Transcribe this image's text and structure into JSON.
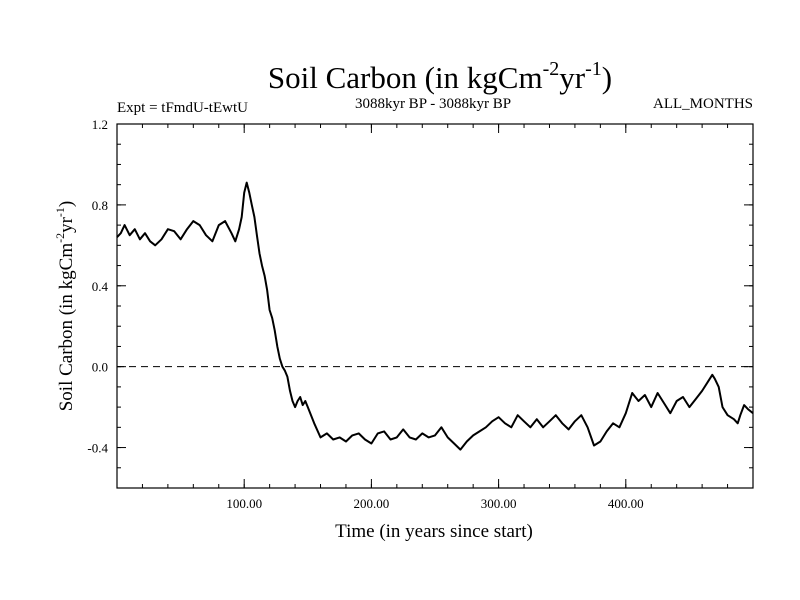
{
  "chart_data": {
    "type": "line",
    "title": {
      "main": "Soil Carbon (in kgCm",
      "sup1": "-2",
      "mid": "yr",
      "sup2": "-1",
      "end": ")"
    },
    "subtitle_left": "Expt = tFmdU-tEwtU",
    "subtitle_center": "3088kyr BP - 3088kyr BP",
    "subtitle_right": "ALL_MONTHS",
    "xlabel": "Time (in years since start)",
    "ylabel": {
      "main": "Soil Carbon (in kgCm",
      "sup1": "-2",
      "mid": "yr",
      "sup2": "-1",
      "end": ")"
    },
    "xlim": [
      0,
      500
    ],
    "ylim": [
      -0.6,
      1.2
    ],
    "x_ticks": [
      100,
      200,
      300,
      400
    ],
    "x_tick_labels": [
      "100.00",
      "200.00",
      "300.00",
      "400.00"
    ],
    "x_minor_step": 20,
    "y_ticks": [
      -0.4,
      0.0,
      0.4,
      0.8,
      1.2
    ],
    "y_tick_labels": [
      "-0.4",
      "0.0",
      "0.4",
      "0.8",
      "1.2"
    ],
    "y_minor_step": 0.1,
    "reference_line": {
      "y": 0.0,
      "style": "dashed"
    },
    "series": [
      {
        "name": "Soil Carbon",
        "color": "#000000",
        "x": [
          0,
          3,
          6,
          10,
          14,
          18,
          22,
          26,
          30,
          35,
          40,
          45,
          50,
          55,
          60,
          65,
          70,
          75,
          80,
          85,
          90,
          93,
          96,
          98,
          100,
          102,
          104,
          106,
          108,
          110,
          112,
          114,
          116,
          118,
          120,
          122,
          124,
          126,
          128,
          130,
          132,
          134,
          136,
          138,
          140,
          142,
          144,
          146,
          148,
          150,
          155,
          160,
          165,
          170,
          175,
          180,
          185,
          190,
          195,
          200,
          205,
          210,
          215,
          220,
          225,
          230,
          235,
          240,
          245,
          250,
          255,
          260,
          265,
          270,
          275,
          280,
          285,
          290,
          295,
          300,
          305,
          310,
          315,
          320,
          325,
          330,
          335,
          340,
          345,
          350,
          355,
          360,
          365,
          370,
          375,
          380,
          385,
          390,
          395,
          400,
          405,
          410,
          415,
          420,
          425,
          430,
          435,
          440,
          445,
          450,
          455,
          460,
          465,
          468,
          470,
          473,
          476,
          480,
          485,
          488,
          490,
          493,
          496,
          500
        ],
        "values": [
          0.64,
          0.66,
          0.7,
          0.65,
          0.68,
          0.63,
          0.66,
          0.62,
          0.6,
          0.63,
          0.68,
          0.67,
          0.63,
          0.68,
          0.72,
          0.7,
          0.65,
          0.62,
          0.7,
          0.72,
          0.66,
          0.62,
          0.68,
          0.74,
          0.86,
          0.91,
          0.86,
          0.8,
          0.74,
          0.65,
          0.56,
          0.5,
          0.45,
          0.38,
          0.28,
          0.24,
          0.18,
          0.1,
          0.04,
          0.0,
          -0.02,
          -0.05,
          -0.12,
          -0.17,
          -0.2,
          -0.17,
          -0.15,
          -0.19,
          -0.17,
          -0.2,
          -0.28,
          -0.35,
          -0.33,
          -0.36,
          -0.35,
          -0.37,
          -0.34,
          -0.33,
          -0.36,
          -0.38,
          -0.33,
          -0.32,
          -0.36,
          -0.35,
          -0.31,
          -0.35,
          -0.36,
          -0.33,
          -0.35,
          -0.34,
          -0.3,
          -0.35,
          -0.38,
          -0.41,
          -0.37,
          -0.34,
          -0.32,
          -0.3,
          -0.27,
          -0.25,
          -0.28,
          -0.3,
          -0.24,
          -0.27,
          -0.3,
          -0.26,
          -0.3,
          -0.27,
          -0.24,
          -0.28,
          -0.31,
          -0.27,
          -0.24,
          -0.3,
          -0.39,
          -0.37,
          -0.32,
          -0.28,
          -0.3,
          -0.23,
          -0.13,
          -0.17,
          -0.14,
          -0.2,
          -0.13,
          -0.18,
          -0.23,
          -0.17,
          -0.15,
          -0.2,
          -0.16,
          -0.12,
          -0.07,
          -0.04,
          -0.06,
          -0.1,
          -0.2,
          -0.24,
          -0.26,
          -0.28,
          -0.24,
          -0.19,
          -0.21,
          -0.23
        ]
      }
    ]
  }
}
